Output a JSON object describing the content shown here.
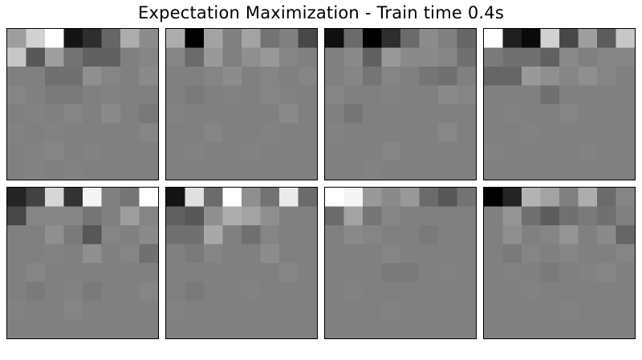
{
  "title": "Expectation Maximization - Train time 0.4s",
  "chart_data": {
    "type": "heatmap",
    "title": "Expectation Maximization - Train time 0.4s",
    "colormap": "gray",
    "grid": {
      "rows": 2,
      "cols": 4
    },
    "image_shape": [
      8,
      8
    ],
    "axes_visible": false,
    "components": [
      {
        "values": [
          [
            0.62,
            0.82,
            1.0,
            0.08,
            0.18,
            0.4,
            0.68,
            0.55
          ],
          [
            0.78,
            0.34,
            0.62,
            0.45,
            0.38,
            0.38,
            0.5,
            0.52
          ],
          [
            0.5,
            0.5,
            0.44,
            0.44,
            0.56,
            0.52,
            0.5,
            0.54
          ],
          [
            0.52,
            0.5,
            0.48,
            0.48,
            0.5,
            0.51,
            0.5,
            0.5
          ],
          [
            0.5,
            0.51,
            0.5,
            0.52,
            0.5,
            0.54,
            0.5,
            0.47
          ],
          [
            0.51,
            0.5,
            0.51,
            0.5,
            0.5,
            0.5,
            0.5,
            0.52
          ],
          [
            0.5,
            0.51,
            0.52,
            0.5,
            0.51,
            0.5,
            0.5,
            0.5
          ],
          [
            0.5,
            0.51,
            0.5,
            0.51,
            0.5,
            0.5,
            0.5,
            0.5
          ]
        ]
      },
      {
        "values": [
          [
            0.68,
            0.0,
            0.64,
            0.5,
            0.64,
            0.45,
            0.5,
            0.28
          ],
          [
            0.52,
            0.42,
            0.6,
            0.5,
            0.56,
            0.6,
            0.52,
            0.5
          ],
          [
            0.5,
            0.5,
            0.52,
            0.55,
            0.5,
            0.52,
            0.5,
            0.52
          ],
          [
            0.5,
            0.48,
            0.5,
            0.51,
            0.5,
            0.52,
            0.51,
            0.5
          ],
          [
            0.51,
            0.5,
            0.5,
            0.5,
            0.5,
            0.5,
            0.54,
            0.5
          ],
          [
            0.5,
            0.5,
            0.52,
            0.5,
            0.5,
            0.51,
            0.5,
            0.5
          ],
          [
            0.5,
            0.51,
            0.5,
            0.5,
            0.51,
            0.5,
            0.5,
            0.5
          ],
          [
            0.5,
            0.5,
            0.5,
            0.5,
            0.5,
            0.5,
            0.5,
            0.5
          ]
        ]
      },
      {
        "values": [
          [
            0.06,
            0.42,
            0.0,
            0.18,
            0.42,
            0.55,
            0.5,
            0.4
          ],
          [
            0.5,
            0.54,
            0.38,
            0.6,
            0.54,
            0.54,
            0.52,
            0.44
          ],
          [
            0.5,
            0.52,
            0.46,
            0.52,
            0.5,
            0.46,
            0.44,
            0.5
          ],
          [
            0.52,
            0.5,
            0.5,
            0.51,
            0.5,
            0.5,
            0.54,
            0.52
          ],
          [
            0.5,
            0.46,
            0.5,
            0.5,
            0.5,
            0.5,
            0.5,
            0.5
          ],
          [
            0.51,
            0.5,
            0.5,
            0.5,
            0.5,
            0.5,
            0.53,
            0.5
          ],
          [
            0.5,
            0.5,
            0.5,
            0.52,
            0.5,
            0.5,
            0.5,
            0.5
          ],
          [
            0.5,
            0.5,
            0.51,
            0.5,
            0.5,
            0.5,
            0.5,
            0.5
          ]
        ]
      },
      {
        "values": [
          [
            1.0,
            0.12,
            0.04,
            0.82,
            0.28,
            0.62,
            0.36,
            0.78
          ],
          [
            0.48,
            0.44,
            0.44,
            0.38,
            0.54,
            0.5,
            0.52,
            0.52
          ],
          [
            0.4,
            0.4,
            0.6,
            0.56,
            0.52,
            0.56,
            0.52,
            0.5
          ],
          [
            0.5,
            0.5,
            0.5,
            0.44,
            0.5,
            0.5,
            0.5,
            0.5
          ],
          [
            0.5,
            0.51,
            0.5,
            0.5,
            0.52,
            0.5,
            0.5,
            0.5
          ],
          [
            0.5,
            0.5,
            0.51,
            0.5,
            0.5,
            0.5,
            0.5,
            0.5
          ],
          [
            0.51,
            0.5,
            0.5,
            0.5,
            0.5,
            0.51,
            0.5,
            0.5
          ],
          [
            0.5,
            0.5,
            0.5,
            0.5,
            0.5,
            0.5,
            0.5,
            0.5
          ]
        ]
      },
      {
        "values": [
          [
            0.14,
            0.26,
            0.84,
            0.2,
            0.96,
            0.5,
            0.46,
            1.0
          ],
          [
            0.28,
            0.52,
            0.52,
            0.52,
            0.46,
            0.5,
            0.62,
            0.52
          ],
          [
            0.5,
            0.5,
            0.56,
            0.48,
            0.34,
            0.52,
            0.5,
            0.54
          ],
          [
            0.5,
            0.5,
            0.51,
            0.5,
            0.56,
            0.5,
            0.52,
            0.44
          ],
          [
            0.5,
            0.52,
            0.5,
            0.5,
            0.5,
            0.5,
            0.5,
            0.5
          ],
          [
            0.5,
            0.48,
            0.5,
            0.51,
            0.48,
            0.5,
            0.5,
            0.52
          ],
          [
            0.51,
            0.5,
            0.5,
            0.52,
            0.5,
            0.5,
            0.5,
            0.5
          ],
          [
            0.5,
            0.5,
            0.5,
            0.5,
            0.5,
            0.5,
            0.5,
            0.5
          ]
        ]
      },
      {
        "values": [
          [
            0.08,
            0.88,
            0.42,
            1.0,
            0.56,
            0.45,
            0.92,
            0.42
          ],
          [
            0.38,
            0.34,
            0.56,
            0.68,
            0.64,
            0.56,
            0.5,
            0.5
          ],
          [
            0.44,
            0.44,
            0.66,
            0.5,
            0.44,
            0.52,
            0.5,
            0.5
          ],
          [
            0.5,
            0.48,
            0.52,
            0.5,
            0.5,
            0.55,
            0.5,
            0.5
          ],
          [
            0.5,
            0.5,
            0.5,
            0.5,
            0.5,
            0.5,
            0.52,
            0.5
          ],
          [
            0.5,
            0.48,
            0.5,
            0.5,
            0.51,
            0.5,
            0.5,
            0.5
          ],
          [
            0.51,
            0.5,
            0.5,
            0.5,
            0.5,
            0.5,
            0.5,
            0.5
          ],
          [
            0.5,
            0.5,
            0.5,
            0.5,
            0.5,
            0.5,
            0.5,
            0.5
          ]
        ]
      },
      {
        "values": [
          [
            1.0,
            0.96,
            0.6,
            0.54,
            0.6,
            0.42,
            0.34,
            0.45
          ],
          [
            0.42,
            0.64,
            0.46,
            0.52,
            0.5,
            0.5,
            0.5,
            0.5
          ],
          [
            0.5,
            0.54,
            0.52,
            0.5,
            0.5,
            0.48,
            0.5,
            0.5
          ],
          [
            0.5,
            0.5,
            0.5,
            0.52,
            0.5,
            0.5,
            0.5,
            0.5
          ],
          [
            0.5,
            0.5,
            0.5,
            0.48,
            0.48,
            0.5,
            0.51,
            0.5
          ],
          [
            0.5,
            0.51,
            0.5,
            0.5,
            0.5,
            0.5,
            0.5,
            0.5
          ],
          [
            0.5,
            0.5,
            0.5,
            0.51,
            0.5,
            0.5,
            0.5,
            0.5
          ],
          [
            0.5,
            0.5,
            0.5,
            0.5,
            0.5,
            0.5,
            0.5,
            0.5
          ]
        ]
      },
      {
        "values": [
          [
            0.0,
            0.14,
            0.7,
            0.64,
            0.5,
            0.68,
            0.42,
            0.52
          ],
          [
            0.5,
            0.58,
            0.44,
            0.36,
            0.44,
            0.48,
            0.44,
            0.5
          ],
          [
            0.5,
            0.56,
            0.5,
            0.52,
            0.58,
            0.5,
            0.54,
            0.4
          ],
          [
            0.5,
            0.48,
            0.52,
            0.5,
            0.52,
            0.5,
            0.5,
            0.52
          ],
          [
            0.5,
            0.51,
            0.5,
            0.48,
            0.5,
            0.51,
            0.52,
            0.5
          ],
          [
            0.5,
            0.5,
            0.51,
            0.5,
            0.5,
            0.5,
            0.5,
            0.5
          ],
          [
            0.5,
            0.5,
            0.5,
            0.5,
            0.51,
            0.5,
            0.5,
            0.5
          ],
          [
            0.5,
            0.5,
            0.5,
            0.5,
            0.5,
            0.5,
            0.5,
            0.5
          ]
        ]
      }
    ]
  }
}
